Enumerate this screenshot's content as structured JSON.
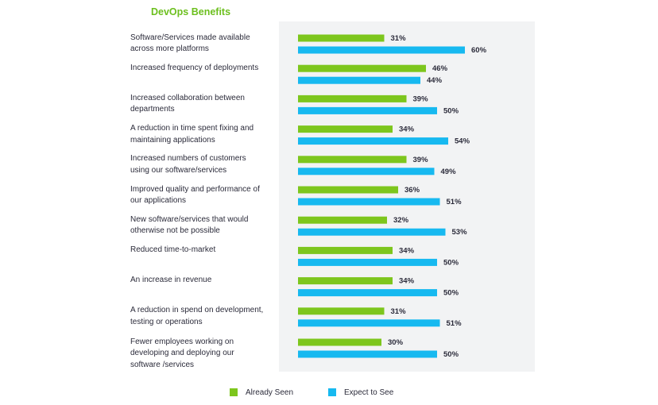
{
  "chart_data": {
    "type": "bar",
    "orientation": "horizontal",
    "title": "DevOps Benefits",
    "categories": [
      "Software/Services made available\nacross more platforms",
      "Increased frequency of deployments",
      "Increased collaboration between\ndepartments",
      "A reduction in time spent fixing and\nmaintaining applications",
      "Increased numbers of customers\nusing our software/services",
      "Improved quality and performance of\nour applications",
      "New software/services that would\notherwise not be possible",
      "Reduced time-to-market",
      "An increase in revenue",
      "A reduction in spend on development,\ntesting or operations",
      "Fewer employees working on\ndeveloping and deploying our\nsoftware /services"
    ],
    "series": [
      {
        "name": "Already Seen",
        "color": "#7dc61d",
        "values": [
          31,
          46,
          39,
          34,
          39,
          36,
          32,
          34,
          34,
          31,
          30
        ],
        "value_labels": [
          "31%",
          "46%",
          "39%",
          "34%",
          "39%",
          "36%",
          "32%",
          "34%",
          "34%",
          "31%",
          "30%"
        ]
      },
      {
        "name": "Expect to See",
        "color": "#17b9f0",
        "values": [
          60,
          44,
          50,
          54,
          49,
          51,
          53,
          50,
          50,
          51,
          50
        ],
        "value_labels": [
          "60%",
          "44%",
          "50%",
          "54%",
          "49%",
          "51%",
          "53%",
          "50%",
          "50%",
          "51%",
          "50%"
        ]
      }
    ]
  }
}
